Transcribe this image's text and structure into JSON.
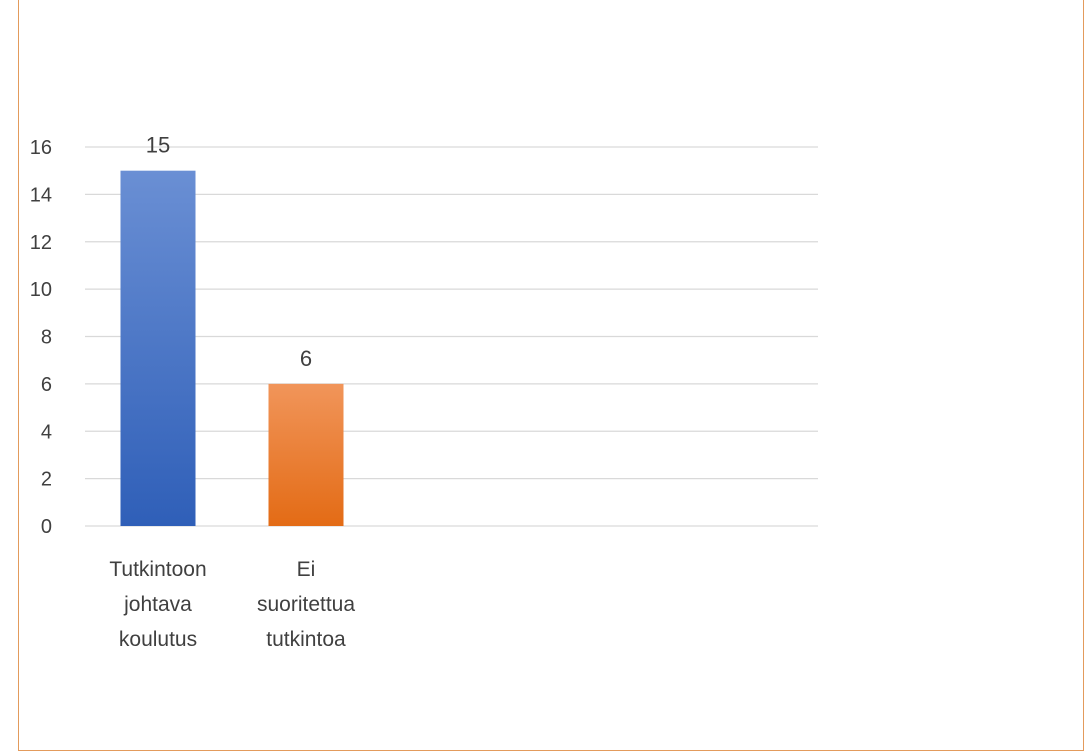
{
  "chart_data": {
    "type": "bar",
    "categories": [
      [
        "Tutkintoon",
        "johtava",
        "koulutus"
      ],
      [
        "Ei",
        "suoritettua",
        "tutkintoa"
      ]
    ],
    "values": [
      15,
      6
    ],
    "data_labels": [
      "15",
      "6"
    ],
    "yticks": [
      "0",
      "2",
      "4",
      "6",
      "8",
      "10",
      "12",
      "14",
      "16"
    ],
    "ylim": [
      0,
      16
    ],
    "grid": true,
    "colors": [
      "#4472C4",
      "#ED7D31"
    ]
  }
}
